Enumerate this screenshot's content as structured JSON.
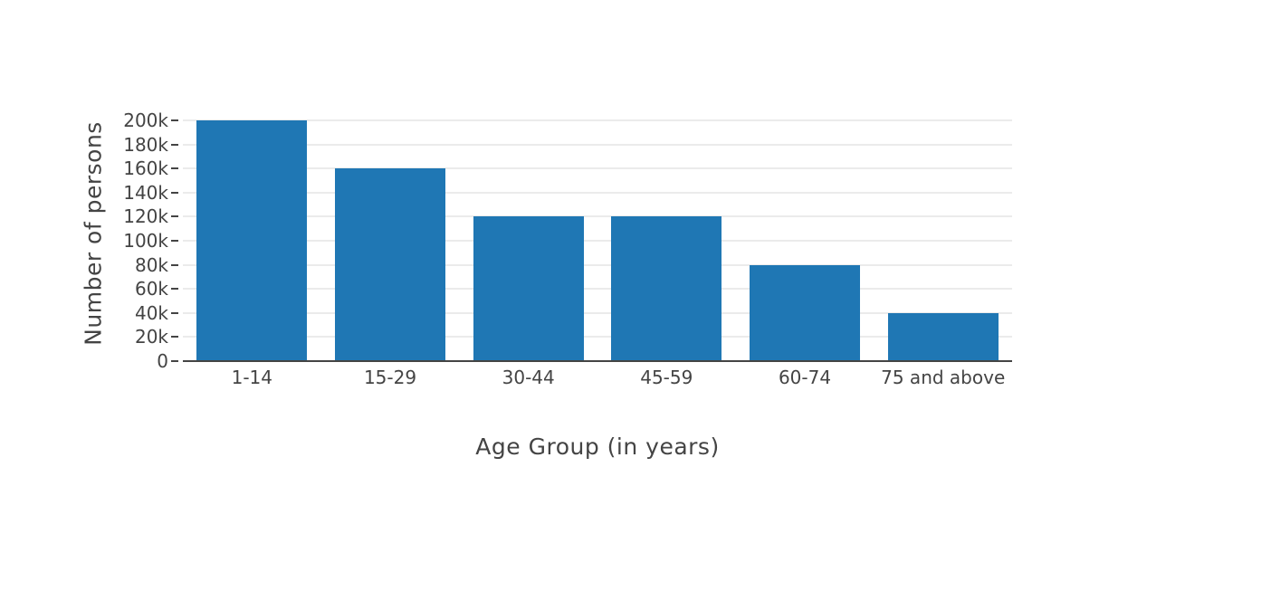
{
  "chart_data": {
    "type": "bar",
    "categories": [
      "1-14",
      "15-29",
      "30-44",
      "45-59",
      "60-74",
      "75 and above"
    ],
    "values": [
      200000,
      160000,
      120000,
      120000,
      80000,
      40000
    ],
    "title": "",
    "xlabel": "Age Group (in years)",
    "ylabel": "Number of persons",
    "ylim": [
      0,
      200000
    ],
    "ytick_step": 20000,
    "ytick_labels": [
      "0",
      "20k",
      "40k",
      "60k",
      "80k",
      "100k",
      "120k",
      "140k",
      "160k",
      "180k",
      "200k"
    ],
    "grid": true,
    "legend": "none",
    "colors": {
      "bar": "#1f77b4",
      "grid": "#ebebeb",
      "axis_line": "#444444",
      "text": "#444444",
      "background": "#ffffff"
    }
  }
}
